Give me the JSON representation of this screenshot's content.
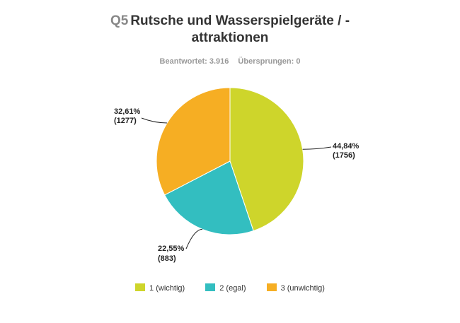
{
  "question": {
    "number": "Q5",
    "title_line1": "Rutsche und Wasserspielgeräte / -",
    "title_line2": "attraktionen"
  },
  "stats": {
    "answered": "Beantwortet: 3.916",
    "skipped": "Übersprungen: 0"
  },
  "colors": {
    "series1": "#CED52B",
    "series2": "#33BEC0",
    "series3": "#F6AE23"
  },
  "chart_data": {
    "type": "pie",
    "title": "Rutsche und Wasserspielgeräte / - attraktionen",
    "legend_position": "bottom",
    "slices": [
      {
        "category": "1 (wichtig)",
        "percent": 44.84,
        "count": 1756,
        "percent_label": "44,84%",
        "count_label": "(1756)",
        "color": "#CED52B"
      },
      {
        "category": "2 (egal)",
        "percent": 22.55,
        "count": 883,
        "percent_label": "22,55%",
        "count_label": "(883)",
        "color": "#33BEC0"
      },
      {
        "category": "3 (unwichtig)",
        "percent": 32.61,
        "count": 1277,
        "percent_label": "32,61%",
        "count_label": "(1277)",
        "color": "#F6AE23"
      }
    ]
  }
}
